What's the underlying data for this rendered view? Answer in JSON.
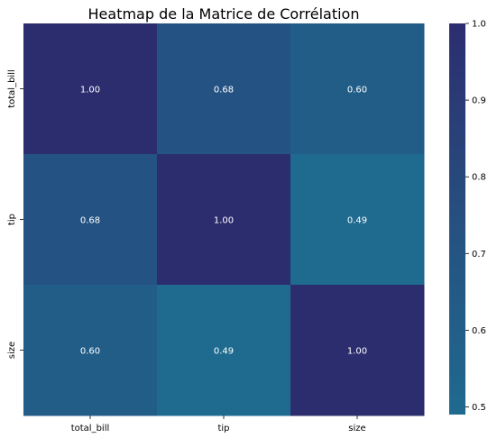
{
  "chart_data": {
    "type": "heatmap",
    "title": "Heatmap de la Matrice de Corrélation",
    "x_categories": [
      "total_bill",
      "tip",
      "size"
    ],
    "y_categories": [
      "total_bill",
      "tip",
      "size"
    ],
    "values": [
      [
        1.0,
        0.68,
        0.6
      ],
      [
        0.68,
        1.0,
        0.49
      ],
      [
        0.6,
        0.49,
        1.0
      ]
    ],
    "annotations": [
      [
        "1.00",
        "0.68",
        "0.60"
      ],
      [
        "0.68",
        "1.00",
        "0.49"
      ],
      [
        "0.60",
        "0.49",
        "1.00"
      ]
    ],
    "colorbar": {
      "min": 0.49,
      "max": 1.0,
      "ticks": [
        "0.5",
        "0.6",
        "0.7",
        "0.8",
        "0.9",
        "1.0"
      ],
      "tick_values": [
        0.5,
        0.6,
        0.7,
        0.8,
        0.9,
        1.0
      ]
    },
    "colors": {
      "low": "#1f6a8f",
      "high": "#2c2d6f",
      "annotation_text": "#ffffff"
    }
  }
}
